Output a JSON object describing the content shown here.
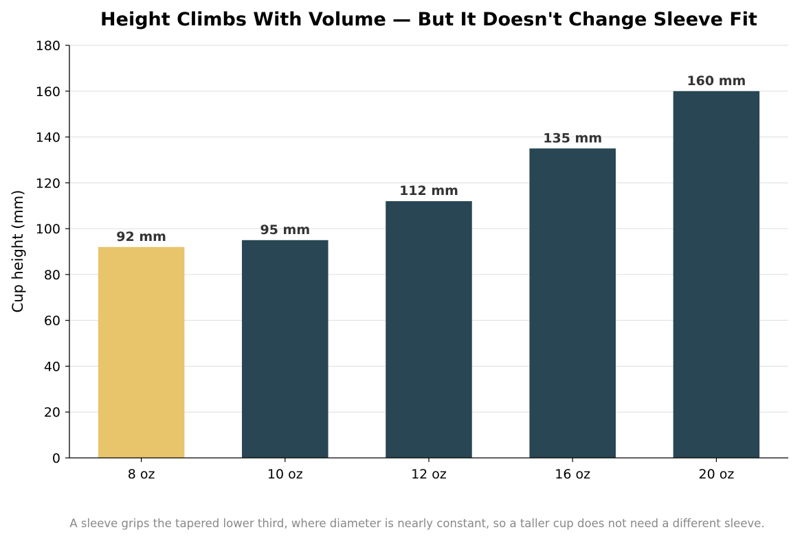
{
  "chart_data": {
    "type": "bar",
    "title": "Height Climbs With Volume — But It Doesn't Change Sleeve Fit",
    "xlabel": "",
    "ylabel": "Cup height (mm)",
    "categories": [
      "8 oz",
      "10 oz",
      "12 oz",
      "16 oz",
      "20 oz"
    ],
    "values": [
      92,
      95,
      112,
      135,
      160
    ],
    "data_labels": [
      "92 mm",
      "95 mm",
      "112 mm",
      "135 mm",
      "160 mm"
    ],
    "ylim": [
      0,
      180
    ],
    "yticks": [
      0,
      20,
      40,
      60,
      80,
      100,
      120,
      140,
      160,
      180
    ],
    "grid": "horizontal",
    "colors": {
      "highlight": "#E8C46B",
      "default": "#284653",
      "grid": "#dddddd",
      "axis": "#000000"
    },
    "highlight_index": 0,
    "caption": "A sleeve grips the tapered lower third, where diameter is nearly constant, so a taller cup does not need a different sleeve."
  }
}
